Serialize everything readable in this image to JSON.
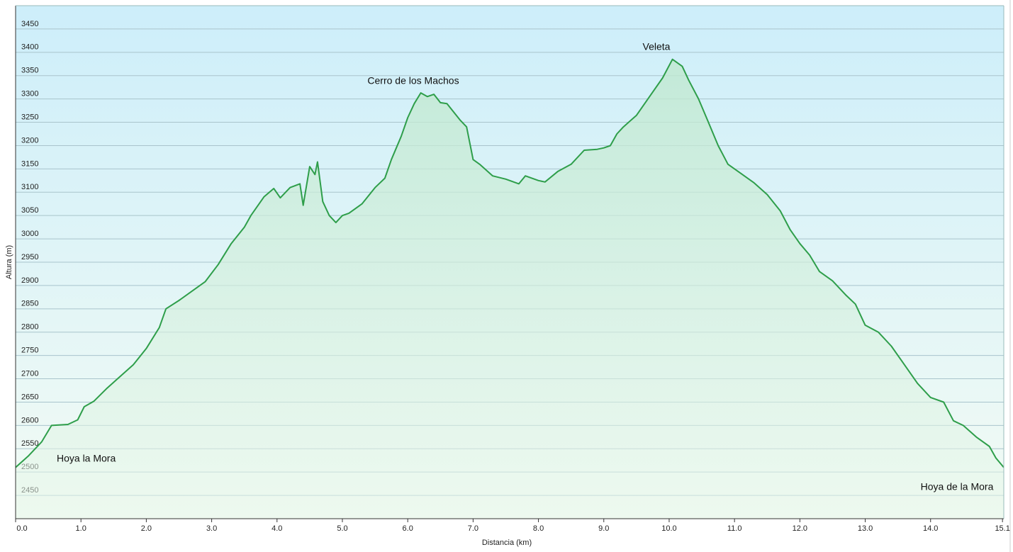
{
  "chart_data": {
    "type": "area",
    "x_label": "Distancia  (km)",
    "y_label": "Altura (m)",
    "xlim": [
      0,
      15.12
    ],
    "ylim": [
      2400,
      3500
    ],
    "xticks": [
      {
        "value": 0,
        "label": "0.0"
      },
      {
        "value": 1,
        "label": "1.0"
      },
      {
        "value": 2,
        "label": "2.0"
      },
      {
        "value": 3,
        "label": "3.0"
      },
      {
        "value": 4,
        "label": "4.0"
      },
      {
        "value": 5,
        "label": "5.0"
      },
      {
        "value": 6,
        "label": "6.0"
      },
      {
        "value": 7,
        "label": "7.0"
      },
      {
        "value": 8,
        "label": "8.0"
      },
      {
        "value": 9,
        "label": "9.0"
      },
      {
        "value": 10,
        "label": "10.0"
      },
      {
        "value": 11,
        "label": "11.0"
      },
      {
        "value": 12,
        "label": "12.0"
      },
      {
        "value": 13,
        "label": "13.0"
      },
      {
        "value": 14,
        "label": "14.0"
      },
      {
        "value": 15.1,
        "label": "15.1"
      }
    ],
    "yticks": [
      2450,
      2500,
      2550,
      2600,
      2650,
      2700,
      2750,
      2800,
      2850,
      2900,
      2950,
      3000,
      3050,
      3100,
      3150,
      3200,
      3250,
      3300,
      3350,
      3400,
      3450
    ],
    "grid": true,
    "color": "#2e9e4a",
    "annotations": [
      "Hoya la Mora",
      "Cerro de los Machos",
      "Veleta",
      "Hoya de la Mora"
    ],
    "x": [
      0,
      0.2,
      0.4,
      0.55,
      0.8,
      0.95,
      1.05,
      1.2,
      1.4,
      1.6,
      1.8,
      2.0,
      2.2,
      2.3,
      2.5,
      2.7,
      2.9,
      3.1,
      3.3,
      3.5,
      3.6,
      3.8,
      3.95,
      4.05,
      4.2,
      4.35,
      4.4,
      4.5,
      4.58,
      4.62,
      4.7,
      4.8,
      4.9,
      5.0,
      5.1,
      5.3,
      5.5,
      5.65,
      5.75,
      5.9,
      6.0,
      6.1,
      6.2,
      6.3,
      6.4,
      6.5,
      6.6,
      6.8,
      6.9,
      7.0,
      7.1,
      7.3,
      7.5,
      7.7,
      7.8,
      8.0,
      8.1,
      8.3,
      8.5,
      8.7,
      8.9,
      9.0,
      9.1,
      9.2,
      9.3,
      9.5,
      9.7,
      9.9,
      10.05,
      10.2,
      10.3,
      10.45,
      10.6,
      10.75,
      10.9,
      11.1,
      11.3,
      11.5,
      11.7,
      11.85,
      12.0,
      12.15,
      12.3,
      12.5,
      12.7,
      12.85,
      13.0,
      13.2,
      13.4,
      13.6,
      13.8,
      14.0,
      14.2,
      14.35,
      14.5,
      14.7,
      14.9,
      15.0,
      15.12
    ],
    "values": [
      2510,
      2535,
      2565,
      2600,
      2602,
      2612,
      2640,
      2652,
      2680,
      2705,
      2730,
      2765,
      2810,
      2850,
      2868,
      2888,
      2908,
      2945,
      2990,
      3025,
      3050,
      3090,
      3108,
      3088,
      3110,
      3118,
      3072,
      3155,
      3138,
      3165,
      3080,
      3050,
      3035,
      3050,
      3055,
      3075,
      3110,
      3130,
      3170,
      3220,
      3260,
      3290,
      3313,
      3305,
      3310,
      3292,
      3290,
      3255,
      3240,
      3170,
      3160,
      3135,
      3128,
      3118,
      3135,
      3125,
      3122,
      3145,
      3160,
      3190,
      3192,
      3195,
      3200,
      3225,
      3240,
      3265,
      3305,
      3345,
      3385,
      3370,
      3340,
      3300,
      3250,
      3200,
      3160,
      3140,
      3120,
      3095,
      3060,
      3020,
      2990,
      2965,
      2930,
      2910,
      2880,
      2860,
      2815,
      2800,
      2770,
      2730,
      2690,
      2660,
      2650,
      2610,
      2600,
      2575,
      2555,
      2530,
      2510
    ]
  }
}
